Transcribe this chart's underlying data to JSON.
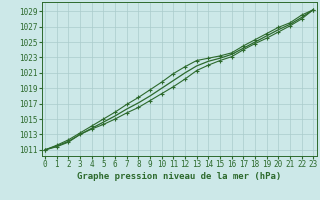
{
  "x": [
    0,
    1,
    2,
    3,
    4,
    5,
    6,
    7,
    8,
    9,
    10,
    11,
    12,
    13,
    14,
    15,
    16,
    17,
    18,
    19,
    20,
    21,
    22,
    23
  ],
  "line_lower": [
    1011.0,
    1011.4,
    1012.0,
    1013.0,
    1013.7,
    1014.3,
    1015.0,
    1015.8,
    1016.5,
    1017.4,
    1018.3,
    1019.2,
    1020.2,
    1021.3,
    1022.0,
    1022.6,
    1023.1,
    1024.0,
    1024.8,
    1025.5,
    1026.3,
    1027.1,
    1028.0,
    1029.2
  ],
  "line_upper": [
    1011.0,
    1011.6,
    1012.3,
    1013.2,
    1014.1,
    1015.0,
    1015.9,
    1016.9,
    1017.8,
    1018.8,
    1019.8,
    1020.9,
    1021.8,
    1022.6,
    1022.9,
    1023.2,
    1023.6,
    1024.5,
    1025.3,
    1026.1,
    1026.9,
    1027.5,
    1028.5,
    1029.2
  ],
  "line_smooth": [
    1011.0,
    1011.5,
    1012.1,
    1013.0,
    1013.8,
    1014.6,
    1015.4,
    1016.3,
    1017.1,
    1018.0,
    1019.0,
    1020.0,
    1021.0,
    1021.9,
    1022.5,
    1022.9,
    1023.4,
    1024.2,
    1025.0,
    1025.8,
    1026.6,
    1027.3,
    1028.2,
    1029.2
  ],
  "bg_color": "#cce8e8",
  "line_color": "#2d6a2d",
  "grid_color": "#aacccc",
  "ylabel_ticks": [
    1011,
    1013,
    1015,
    1017,
    1019,
    1021,
    1023,
    1025,
    1027,
    1029
  ],
  "xlabel_ticks": [
    0,
    1,
    2,
    3,
    4,
    5,
    6,
    7,
    8,
    9,
    10,
    11,
    12,
    13,
    14,
    15,
    16,
    17,
    18,
    19,
    20,
    21,
    22,
    23
  ],
  "xlabel": "Graphe pression niveau de la mer (hPa)",
  "xlim": [
    -0.3,
    23.3
  ],
  "ylim": [
    1010.2,
    1030.2
  ],
  "label_fontsize": 6.5,
  "tick_fontsize": 5.5
}
